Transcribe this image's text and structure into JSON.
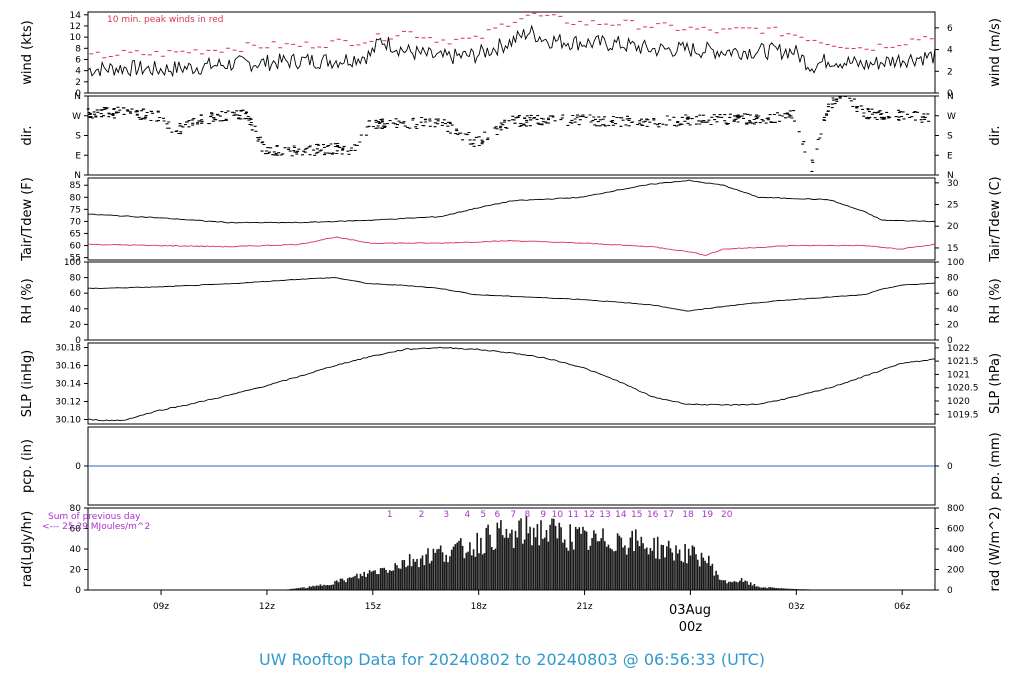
{
  "title": "UW Rooftop Data for 20240802  to  20240803 @ 06:56:33  (UTC)",
  "date_label": "03Aug",
  "colors": {
    "title": "#3399cc",
    "red": "#dd3355",
    "purple": "#aa33cc",
    "pcp": "#3366bb",
    "line": "#000000"
  },
  "x_axis": {
    "unit": "hours since 20240802 06:56 UTC",
    "ticks": [
      "09z",
      "12z",
      "15z",
      "18z",
      "21z",
      "00z",
      "03z",
      "06z"
    ],
    "tick_hours": [
      2.07,
      5.07,
      8.07,
      11.07,
      14.07,
      17.07,
      20.07,
      23.07
    ],
    "range": [
      0,
      24
    ]
  },
  "chart_data": [
    {
      "type": "line",
      "name": "wind",
      "ylabel_left": "wind (kts)",
      "ylabel_right": "wind (m/s)",
      "y_ticks": [
        0,
        2,
        4,
        6,
        8,
        10,
        12,
        14
      ],
      "right_ticks": [
        0,
        2,
        4,
        6
      ],
      "ylim": [
        0,
        14.5
      ],
      "annotation": "10 min. peak winds in red",
      "series": [
        {
          "name": "wind",
          "x": [
            0,
            1,
            2,
            3,
            4,
            5,
            6,
            7,
            7.5,
            8,
            8.3,
            9,
            10,
            11,
            12,
            12.5,
            13,
            14,
            15,
            16,
            17,
            18,
            19,
            20,
            20.5,
            21,
            22,
            23,
            24
          ],
          "y": [
            4.2,
            4.5,
            4.2,
            4.6,
            5.2,
            5.4,
            5.8,
            5.8,
            6.2,
            6.8,
            9.5,
            7.5,
            6.3,
            6.8,
            9.2,
            11.0,
            9.5,
            9.0,
            8.8,
            7.8,
            7.8,
            7.5,
            7.5,
            7.5,
            4.8,
            6.0,
            5.0,
            6.0,
            6.6
          ]
        },
        {
          "name": "peak",
          "x": [
            0,
            1,
            2,
            3,
            4,
            5,
            6,
            7,
            8,
            9,
            10,
            11,
            12,
            12.5,
            13,
            14,
            15,
            16,
            17,
            18,
            19,
            20,
            21,
            22,
            23,
            24
          ],
          "y": [
            6.5,
            7.0,
            7.0,
            7.5,
            8.0,
            8.5,
            8.5,
            9.0,
            9.5,
            11.0,
            9.5,
            9.5,
            13.0,
            14.0,
            13.5,
            12.5,
            12.5,
            12.0,
            11.5,
            11.0,
            11.5,
            10.5,
            9.0,
            8.0,
            9.0,
            10.5
          ]
        }
      ]
    },
    {
      "type": "scatter",
      "name": "dir.",
      "ylabel_left": "dir.",
      "ylabel_right": "dir.",
      "y_ticks": [
        "N",
        "E",
        "S",
        "W",
        "N"
      ],
      "ylim": [
        0,
        360
      ],
      "series": [
        {
          "name": "direction",
          "x": [
            0,
            1,
            2,
            2.5,
            3,
            4,
            4.5,
            5,
            6,
            7,
            7.5,
            8,
            9,
            10,
            11,
            12,
            13,
            14,
            15,
            16,
            17,
            18,
            19,
            20,
            20.5,
            21,
            21.5,
            22,
            23,
            24
          ],
          "y": [
            280,
            285,
            270,
            200,
            250,
            270,
            280,
            110,
            110,
            120,
            115,
            230,
            235,
            240,
            150,
            245,
            250,
            250,
            245,
            240,
            250,
            255,
            255,
            270,
            35,
            320,
            355,
            280,
            270,
            260
          ]
        }
      ]
    },
    {
      "type": "line",
      "name": "Tair/Tdew",
      "ylabel_left": "Tair/Tdew (F)",
      "ylabel_right": "Tair/Tdew (C)",
      "y_ticks": [
        55,
        60,
        65,
        70,
        75,
        80,
        85
      ],
      "right_ticks": [
        15,
        20,
        25,
        30
      ],
      "ylim": [
        54,
        88
      ],
      "series": [
        {
          "name": "Tair",
          "x": [
            0,
            2,
            4,
            6,
            8,
            10,
            11,
            12,
            14,
            15,
            16,
            17,
            18,
            19,
            20,
            21,
            22,
            22.5,
            24
          ],
          "y": [
            73.0,
            71.5,
            69.5,
            69.5,
            70.5,
            72.0,
            75.5,
            78.5,
            80.0,
            83.0,
            85.5,
            87.0,
            85.0,
            80.0,
            79.5,
            79.0,
            74.0,
            70.5,
            70.0
          ]
        },
        {
          "name": "Tdew",
          "x": [
            0,
            2,
            4,
            6,
            7,
            8,
            9,
            10,
            12,
            14,
            16,
            17,
            17.5,
            18,
            20,
            22,
            23,
            24
          ],
          "y": [
            60.5,
            60.0,
            59.5,
            60.5,
            63.5,
            61.0,
            61.0,
            61.0,
            62.0,
            61.0,
            59.5,
            57.5,
            56.0,
            58.5,
            60.0,
            60.0,
            58.5,
            60.5
          ]
        }
      ]
    },
    {
      "type": "line",
      "name": "RH",
      "ylabel_left": "RH (%)",
      "ylabel_right": "RH (%)",
      "y_ticks": [
        0,
        20,
        40,
        60,
        80,
        100
      ],
      "right_ticks": [
        0,
        20,
        40,
        60,
        80,
        100
      ],
      "ylim": [
        0,
        100
      ],
      "series": [
        {
          "name": "RH",
          "x": [
            0,
            2,
            4,
            6,
            7,
            8,
            9,
            10,
            11,
            12,
            14,
            16,
            17,
            18,
            19,
            20,
            21,
            22,
            22.5,
            23,
            24
          ],
          "y": [
            66,
            68,
            72,
            78,
            80,
            72,
            70,
            66,
            58,
            56,
            52,
            45,
            37,
            43,
            48,
            52,
            55,
            58,
            65,
            70,
            73
          ]
        }
      ]
    },
    {
      "type": "line",
      "name": "SLP",
      "ylabel_left": "SLP (inHg)",
      "ylabel_right": "SLP (hPa)",
      "y_ticks": [
        30.1,
        30.12,
        30.14,
        30.16,
        30.18
      ],
      "right_ticks": [
        1019.5,
        1020,
        1020.5,
        1021,
        1021.5,
        1022
      ],
      "ylim": [
        30.095,
        30.185
      ],
      "series": [
        {
          "name": "SLP",
          "x": [
            0,
            0.5,
            1,
            2,
            3,
            4,
            5,
            6,
            7,
            8,
            9,
            10,
            11,
            12,
            13,
            14,
            15,
            16,
            17,
            18,
            19,
            20,
            21,
            22,
            23,
            24
          ],
          "y": [
            30.1,
            30.099,
            30.099,
            30.11,
            30.118,
            30.127,
            30.137,
            30.148,
            30.16,
            30.17,
            30.178,
            30.18,
            30.178,
            30.174,
            30.168,
            30.158,
            30.143,
            30.125,
            30.117,
            30.116,
            30.117,
            30.125,
            30.135,
            30.148,
            30.162,
            30.167
          ]
        }
      ]
    },
    {
      "type": "line",
      "name": "pcp.",
      "ylabel_left": "pcp. (in)",
      "ylabel_right": "pcp. (mm)",
      "y_ticks": [
        0
      ],
      "right_ticks": [
        0
      ],
      "ylim": [
        -1,
        1
      ],
      "series": [
        {
          "name": "precip",
          "x": [
            0,
            24
          ],
          "y": [
            0,
            0
          ]
        }
      ]
    },
    {
      "type": "area",
      "name": "rad",
      "ylabel_left": "rad(Lgly/hr)",
      "ylabel_right": "rad (W/m^2)",
      "y_ticks": [
        0,
        20,
        40,
        60,
        80
      ],
      "right_ticks": [
        0,
        200,
        400,
        600,
        800
      ],
      "ylim": [
        0,
        80
      ],
      "annotation_lines": [
        "Sum of previous day",
        "<--- 25.29 MJoules/m^2"
      ],
      "hour_labels": [
        "1",
        "2",
        "3",
        "4",
        "5",
        "6",
        "7",
        "8",
        "9",
        "10",
        "11",
        "12",
        "13",
        "14",
        "15",
        "16",
        "17",
        "18",
        "19",
        "20"
      ],
      "series": [
        {
          "name": "radiation",
          "x": [
            5.5,
            6,
            6.5,
            7,
            7.5,
            8,
            8.5,
            9,
            9.5,
            10,
            10.5,
            11,
            11.5,
            12,
            12.5,
            13,
            13.5,
            14,
            14.5,
            15,
            15.5,
            16,
            16.5,
            17,
            17.5,
            18,
            18.5,
            19,
            19.5,
            20,
            20.5,
            21
          ],
          "y": [
            0,
            2,
            5,
            10,
            15,
            22,
            28,
            35,
            42,
            47,
            50,
            58,
            70,
            66,
            75,
            73,
            70,
            63,
            60,
            65,
            60,
            55,
            50,
            45,
            40,
            10,
            12,
            4,
            2,
            1,
            0.5,
            0
          ]
        }
      ]
    }
  ]
}
